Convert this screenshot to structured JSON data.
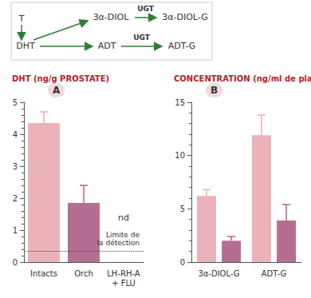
{
  "diagram": {
    "nodes": [
      {
        "label": "T"
      },
      {
        "label": "DHT"
      },
      {
        "label": "3α-DIOL"
      },
      {
        "label": "3α-DIOL-G"
      },
      {
        "label": "ADT"
      },
      {
        "label": "ADT-G"
      }
    ],
    "edges": [
      {
        "from": "T",
        "to": "DHT"
      },
      {
        "from": "DHT",
        "to": "3α-DIOL"
      },
      {
        "from": "DHT",
        "to": "ADT"
      },
      {
        "from": "3α-DIOL",
        "to": "3α-DIOL-G",
        "label": "UGT"
      },
      {
        "from": "ADT",
        "to": "ADT-G",
        "label": "UGT"
      }
    ]
  },
  "chart_data": [
    {
      "type": "bar",
      "panel": "A",
      "title": "DHT (ng/g PROSTATE)",
      "categories": [
        "Intacts",
        "Orch",
        "LH-RH-A\n+ FLU"
      ],
      "values": [
        4.35,
        1.85,
        null
      ],
      "errors": [
        0.35,
        0.55,
        null
      ],
      "colors": [
        "#ebb3b9",
        "#b46e91",
        "#b46e91"
      ],
      "ylim": [
        0,
        5
      ],
      "yticks": [
        0,
        1,
        2,
        3,
        4,
        5
      ],
      "annotations": [
        {
          "text": "nd",
          "category": "LH-RH-A\n+ FLU"
        }
      ],
      "reference_line": {
        "value": 0.35,
        "label": "Limite de\nla détection",
        "line_style": "dotted"
      }
    },
    {
      "type": "bar",
      "panel": "B",
      "title": "CONCENTRATION (ng/ml de plasma)",
      "categories": [
        "3α-DIOL-G",
        "ADT-G"
      ],
      "series": [
        {
          "color": "#ebb3b9",
          "values": [
            6.2,
            11.9
          ],
          "errors": [
            0.6,
            1.9
          ]
        },
        {
          "color": "#b46e91",
          "values": [
            2.0,
            3.9
          ],
          "errors": [
            0.4,
            1.5
          ]
        }
      ],
      "ylim": [
        0,
        15
      ],
      "yticks": [
        0,
        5,
        10,
        15
      ]
    }
  ]
}
